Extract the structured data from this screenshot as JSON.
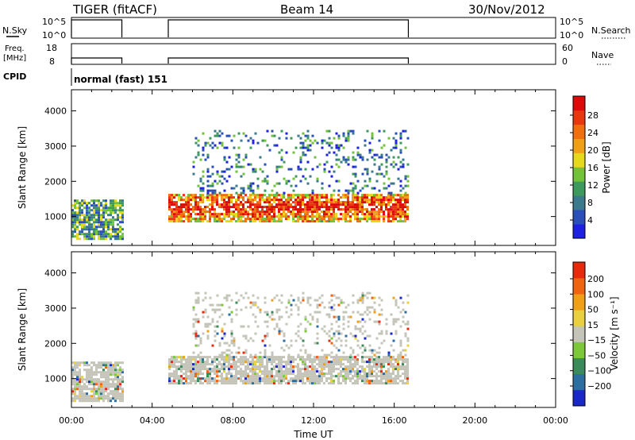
{
  "header": {
    "title": "TIGER (fitACF)",
    "beam": "Beam 14",
    "date": "30/Nov/2012"
  },
  "status_panels": {
    "nsky": {
      "label": "N.Sky",
      "ticks": [
        "10^5",
        "10^0"
      ],
      "right_label": "N.Search",
      "right_ticks": [
        "10^5",
        "10^0"
      ],
      "on_intervals_hours": [
        [
          0.0,
          2.5
        ],
        [
          4.8,
          16.7
        ]
      ]
    },
    "freq": {
      "label_line1": "Freq.",
      "label_line2": "[MHz]",
      "ticks": [
        "18",
        "8"
      ],
      "right_label": "Nave",
      "right_ticks": [
        "60",
        "0"
      ],
      "on_intervals_hours": [
        [
          0.0,
          2.5
        ],
        [
          4.8,
          16.7
        ]
      ]
    },
    "cpid": {
      "label": "CPID",
      "text": "normal (fast) 151"
    }
  },
  "chart_data": [
    {
      "type": "heatmap",
      "quantity": "power",
      "ylabel": "Slant Range [km]",
      "ylim": [
        180,
        4600
      ],
      "yticks": [
        "1000",
        "2000",
        "3000",
        "4000"
      ],
      "xlim_hours": [
        0,
        24
      ],
      "colorbar": {
        "label": "Power [dB]",
        "ticks": [
          "4",
          "8",
          "12",
          "16",
          "20",
          "24",
          "28"
        ],
        "colors": [
          "#1e22e0",
          "#2a4fb8",
          "#3a7a8c",
          "#3d9a5c",
          "#72c23a",
          "#e6d81c",
          "#f0a018",
          "#f07010",
          "#e8380e",
          "#dd0a0a"
        ]
      },
      "regions": [
        {
          "t0": 0.0,
          "t1": 2.5,
          "r0": 400,
          "r1": 1500,
          "level": 0.35
        },
        {
          "t0": 4.8,
          "t1": 16.7,
          "r0": 900,
          "r1": 1700,
          "level": 0.6
        },
        {
          "t0": 6.0,
          "t1": 16.7,
          "r0": 1700,
          "r1": 3500,
          "level": 0.25
        }
      ]
    },
    {
      "type": "heatmap",
      "quantity": "velocity",
      "ylabel": "Slant Range [km]",
      "ylim": [
        180,
        4600
      ],
      "yticks": [
        "1000",
        "2000",
        "3000",
        "4000"
      ],
      "xlim_hours": [
        0,
        24
      ],
      "xticks": [
        "00:00",
        "04:00",
        "08:00",
        "12:00",
        "16:00",
        "20:00",
        "00:00"
      ],
      "xlabel": "Time UT",
      "colorbar": {
        "label": "Velocity [m s⁻¹]",
        "ticks": [
          "200",
          "100",
          "50",
          "15",
          "−15",
          "−50",
          "−100",
          "−200"
        ],
        "colors": [
          "#1a28c8",
          "#2d6ea0",
          "#3a8a5a",
          "#7cc83a",
          "#c4c4b8",
          "#e8d040",
          "#f0a018",
          "#ee6410",
          "#e82a0c"
        ]
      },
      "regions": [
        {
          "t0": 0.0,
          "t1": 2.5,
          "r0": 400,
          "r1": 1500,
          "level": 0.5
        },
        {
          "t0": 4.8,
          "t1": 16.7,
          "r0": 900,
          "r1": 1700,
          "level": 0.5
        },
        {
          "t0": 6.0,
          "t1": 16.7,
          "r0": 1700,
          "r1": 3500,
          "level": 0.5
        }
      ]
    }
  ]
}
